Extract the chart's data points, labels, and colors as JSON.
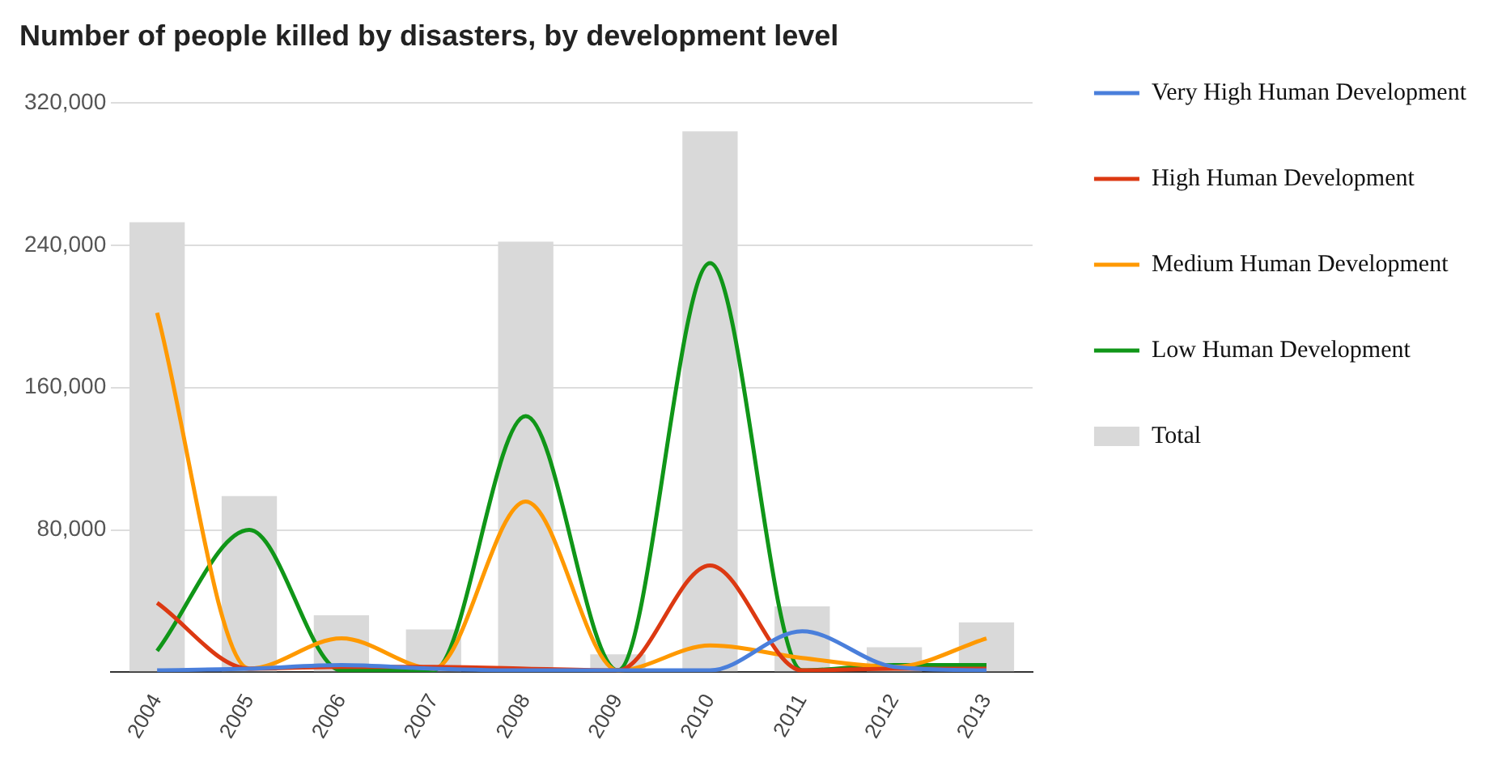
{
  "chart_data": {
    "type": "line",
    "title": "Number of people killed by disasters, by development level",
    "categories": [
      "2004",
      "2005",
      "2006",
      "2007",
      "2008",
      "2009",
      "2010",
      "2011",
      "2012",
      "2013"
    ],
    "series": [
      {
        "name": "Very High Human Development",
        "color": "#4a7fdb",
        "values": [
          1000,
          2000,
          4000,
          2000,
          1000,
          1000,
          1000,
          23000,
          3000,
          1000
        ]
      },
      {
        "name": "High Human Development",
        "color": "#dc3912",
        "values": [
          39000,
          2000,
          3000,
          3000,
          2000,
          1000,
          60000,
          1000,
          2000,
          2000
        ]
      },
      {
        "name": "Medium Human Development",
        "color": "#ff9900",
        "values": [
          202000,
          2000,
          19000,
          2000,
          96000,
          1000,
          15000,
          8000,
          3000,
          19000
        ]
      },
      {
        "name": "Low Human Development",
        "color": "#109618",
        "values": [
          12000,
          80000,
          1000,
          1000,
          144000,
          1000,
          230000,
          1000,
          4000,
          4000
        ]
      },
      {
        "name": "Total",
        "type": "bar",
        "color": "#d9d9d9",
        "values": [
          253000,
          99000,
          32000,
          24000,
          242000,
          10000,
          304000,
          37000,
          14000,
          28000
        ]
      }
    ],
    "ylim": [
      0,
      320000
    ],
    "yticks": [
      {
        "value": 0,
        "label": null
      },
      {
        "value": 80000,
        "label": "80,000"
      },
      {
        "value": 160000,
        "label": "160,000"
      },
      {
        "value": 240000,
        "label": "240,000"
      },
      {
        "value": 320000,
        "label": "320,000"
      }
    ],
    "grid": "y",
    "legend": "right",
    "marker": "none"
  }
}
